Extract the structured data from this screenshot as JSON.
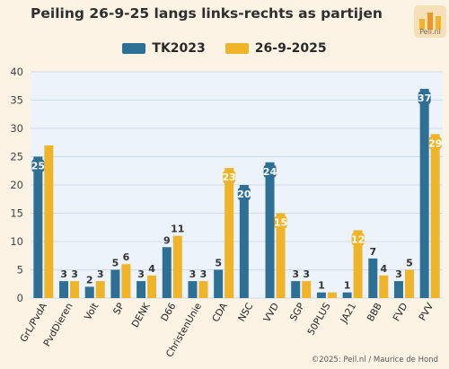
{
  "title": "Peiling 26-9-25 langs links-rechts as partijen",
  "logo_text": "Peil.nl",
  "footer": "©2025: Peil.nl / Maurice de Hond",
  "colors": {
    "tk2023": "#2e6f96",
    "poll": "#f0b429",
    "plot_bg": "#edf3fb",
    "grid": "#cfdbe9",
    "page_bg": "#fdf3e4"
  },
  "chart_data": {
    "type": "bar",
    "categories": [
      "GrL/PvdA",
      "PvdDieren",
      "Volt",
      "SP",
      "DENK",
      "D66",
      "ChristenUnie",
      "CDA",
      "NSC",
      "VVD",
      "SGP",
      "50PLUS",
      "JA21",
      "BBB",
      "FVD",
      "PVV"
    ],
    "series": [
      {
        "name": "TK2023",
        "values": [
          25,
          3,
          2,
          5,
          3,
          9,
          3,
          5,
          20,
          24,
          3,
          1,
          1,
          7,
          3,
          37
        ]
      },
      {
        "name": "26-9-2025",
        "values": [
          27,
          3,
          3,
          6,
          4,
          11,
          3,
          23,
          0,
          15,
          3,
          1,
          12,
          4,
          5,
          29
        ]
      }
    ],
    "data_labels": [
      [
        "25",
        "3",
        "2",
        "5",
        "3",
        "9",
        "3",
        "5",
        "20",
        "24",
        "3",
        "1",
        "1",
        "7",
        "3",
        "37"
      ],
      [
        "",
        "3",
        "3",
        "6",
        "4",
        "11",
        "3",
        "23",
        "",
        "15",
        "3",
        "",
        "12",
        "4",
        "5",
        "29"
      ]
    ],
    "ylim": [
      0,
      40
    ],
    "yticks": [
      0,
      5,
      10,
      15,
      20,
      25,
      30,
      35,
      40
    ],
    "grid": true,
    "legend_position": "top-center"
  }
}
